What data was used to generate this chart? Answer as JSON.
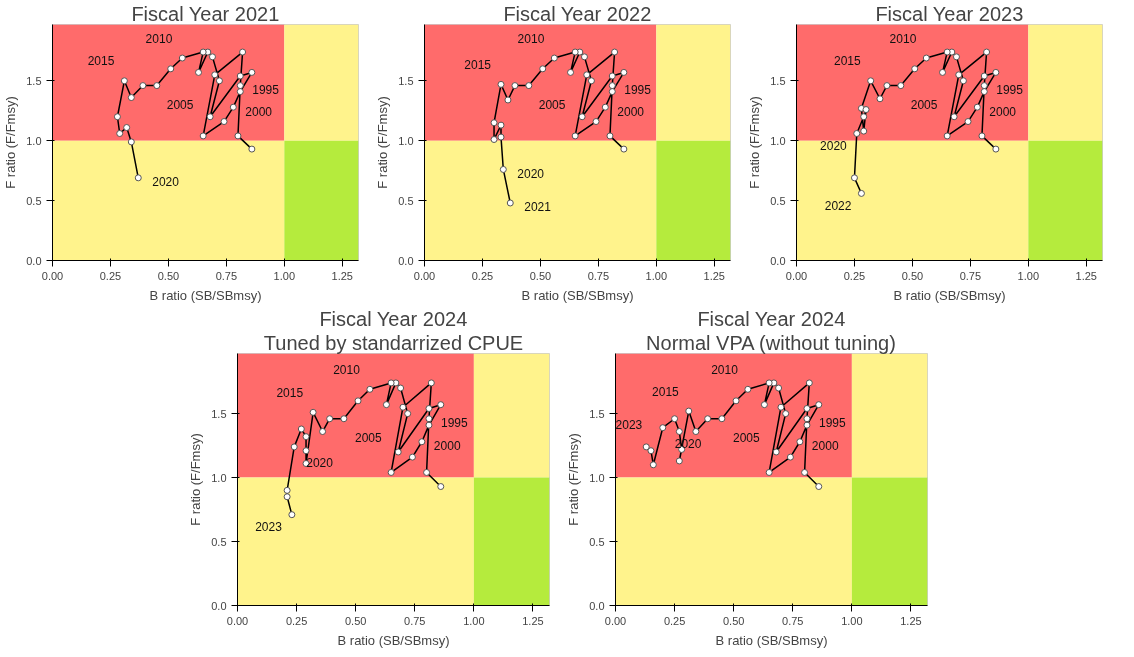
{
  "chart_data": [
    {
      "type": "line",
      "title": "Fiscal Year 2021",
      "xlabel": "B ratio (SB/SBmsy)",
      "ylabel": "F ratio (F/Fmsy)",
      "xlim": [
        0,
        1.32
      ],
      "ylim": [
        0,
        1.97
      ],
      "xticks": [
        {
          "value": 0,
          "label": "0.00"
        },
        {
          "value": 0.25,
          "label": "0.25"
        },
        {
          "value": 0.5,
          "label": "0.50"
        },
        {
          "value": 0.75,
          "label": "0.75"
        },
        {
          "value": 1,
          "label": "1.00"
        },
        {
          "value": 1.25,
          "label": "1.25"
        }
      ],
      "yticks": [
        {
          "value": 0,
          "label": "0.0"
        },
        {
          "value": 0.5,
          "label": "0.5"
        },
        {
          "value": 1,
          "label": "1.0"
        },
        {
          "value": 1.5,
          "label": "1.5"
        }
      ],
      "bands": [
        {
          "axis": "y",
          "from": 1,
          "to": 1.97,
          "color": "#ff6b6b"
        },
        {
          "axis": "y",
          "from": 0,
          "to": 1,
          "color": "#fff38c"
        },
        {
          "axis": "x",
          "from": 1,
          "to": 1.32,
          "color": "#fff38c"
        },
        {
          "axis": "x",
          "from": 1,
          "to": 1.32,
          "color": "#b5eb3d"
        }
      ],
      "marker": "circle",
      "grid": false,
      "series": [
        {
          "color": "#000000",
          "x": [
            0.86,
            0.8,
            0.81,
            0.82,
            0.7,
            0.65,
            0.74,
            0.78,
            0.81,
            0.86,
            0.81,
            0.68,
            0.72,
            0.69,
            0.67,
            0.63,
            0.65,
            0.56,
            0.51,
            0.45,
            0.39,
            0.34,
            0.31,
            0.28,
            0.29,
            0.32,
            0.34,
            0.37
          ],
          "values": [
            0.93,
            1.04,
            1.46,
            1.74,
            1.55,
            1.04,
            1.16,
            1.28,
            1.41,
            1.57,
            1.54,
            1.2,
            1.5,
            1.7,
            1.74,
            1.57,
            1.74,
            1.69,
            1.6,
            1.46,
            1.46,
            1.36,
            1.5,
            1.2,
            1.06,
            1.11,
            0.99,
            0.69
          ]
        }
      ],
      "annotations": [
        {
          "text": "1995",
          "x": 0.81,
          "y": 1.46
        },
        {
          "text": "2000",
          "x": 0.78,
          "y": 1.28
        },
        {
          "text": "2005",
          "x": 0.72,
          "y": 1.5
        },
        {
          "text": "2010",
          "x": 0.56,
          "y": 1.69
        },
        {
          "text": "2015",
          "x": 0.31,
          "y": 1.5
        },
        {
          "text": "2020",
          "x": 0.37,
          "y": 0.69
        }
      ]
    },
    {
      "type": "line",
      "title": "Fiscal Year 2022",
      "xlabel": "B ratio (SB/SBmsy)",
      "ylabel": "F ratio (F/Fmsy)",
      "xlim": [
        0,
        1.32
      ],
      "ylim": [
        0,
        1.97
      ],
      "xticks": [
        {
          "value": 0,
          "label": "0.00"
        },
        {
          "value": 0.25,
          "label": "0.25"
        },
        {
          "value": 0.5,
          "label": "0.50"
        },
        {
          "value": 0.75,
          "label": "0.75"
        },
        {
          "value": 1,
          "label": "1.00"
        },
        {
          "value": 1.25,
          "label": "1.25"
        }
      ],
      "yticks": [
        {
          "value": 0,
          "label": "0.0"
        },
        {
          "value": 0.5,
          "label": "0.5"
        },
        {
          "value": 1,
          "label": "1.0"
        },
        {
          "value": 1.5,
          "label": "1.5"
        }
      ],
      "bands": [
        {
          "axis": "y",
          "from": 1,
          "to": 1.97,
          "color": "#ff6b6b"
        },
        {
          "axis": "y",
          "from": 0,
          "to": 1,
          "color": "#fff38c"
        },
        {
          "axis": "x",
          "from": 1,
          "to": 1.32,
          "color": "#fff38c"
        },
        {
          "axis": "x",
          "from": 1,
          "to": 1.32,
          "color": "#b5eb3d"
        }
      ],
      "marker": "circle",
      "grid": false,
      "series": [
        {
          "color": "#000000",
          "x": [
            0.86,
            0.8,
            0.81,
            0.82,
            0.7,
            0.65,
            0.74,
            0.78,
            0.81,
            0.86,
            0.81,
            0.68,
            0.72,
            0.69,
            0.67,
            0.63,
            0.65,
            0.56,
            0.51,
            0.45,
            0.39,
            0.36,
            0.33,
            0.3,
            0.3,
            0.33,
            0.33,
            0.34,
            0.37
          ],
          "values": [
            0.93,
            1.04,
            1.46,
            1.74,
            1.55,
            1.04,
            1.16,
            1.28,
            1.41,
            1.57,
            1.54,
            1.2,
            1.5,
            1.7,
            1.74,
            1.57,
            1.74,
            1.69,
            1.6,
            1.46,
            1.46,
            1.34,
            1.47,
            1.15,
            1.01,
            1.13,
            1.03,
            0.76,
            0.48
          ]
        }
      ],
      "annotations": [
        {
          "text": "1995",
          "x": 0.81,
          "y": 1.46
        },
        {
          "text": "2000",
          "x": 0.78,
          "y": 1.28
        },
        {
          "text": "2005",
          "x": 0.72,
          "y": 1.5
        },
        {
          "text": "2010",
          "x": 0.56,
          "y": 1.69
        },
        {
          "text": "2015",
          "x": 0.33,
          "y": 1.47
        },
        {
          "text": "2020",
          "x": 0.34,
          "y": 0.76
        },
        {
          "text": "2021",
          "x": 0.37,
          "y": 0.48
        }
      ]
    },
    {
      "type": "line",
      "title": "Fiscal Year 2023",
      "xlabel": "B ratio (SB/SBmsy)",
      "ylabel": "F ratio (F/Fmsy)",
      "xlim": [
        0,
        1.32
      ],
      "ylim": [
        0,
        1.97
      ],
      "xticks": [
        {
          "value": 0,
          "label": "0.00"
        },
        {
          "value": 0.25,
          "label": "0.25"
        },
        {
          "value": 0.5,
          "label": "0.50"
        },
        {
          "value": 0.75,
          "label": "0.75"
        },
        {
          "value": 1,
          "label": "1.00"
        },
        {
          "value": 1.25,
          "label": "1.25"
        }
      ],
      "yticks": [
        {
          "value": 0,
          "label": "0.0"
        },
        {
          "value": 0.5,
          "label": "0.5"
        },
        {
          "value": 1,
          "label": "1.0"
        },
        {
          "value": 1.5,
          "label": "1.5"
        }
      ],
      "bands": [
        {
          "axis": "y",
          "from": 1,
          "to": 1.97,
          "color": "#ff6b6b"
        },
        {
          "axis": "y",
          "from": 0,
          "to": 1,
          "color": "#fff38c"
        },
        {
          "axis": "x",
          "from": 1,
          "to": 1.32,
          "color": "#fff38c"
        },
        {
          "axis": "x",
          "from": 1,
          "to": 1.32,
          "color": "#b5eb3d"
        }
      ],
      "marker": "circle",
      "grid": false,
      "series": [
        {
          "color": "#000000",
          "x": [
            0.86,
            0.8,
            0.81,
            0.82,
            0.7,
            0.65,
            0.74,
            0.78,
            0.81,
            0.86,
            0.81,
            0.68,
            0.72,
            0.69,
            0.67,
            0.63,
            0.65,
            0.56,
            0.51,
            0.45,
            0.39,
            0.36,
            0.32,
            0.28,
            0.29,
            0.3,
            0.29,
            0.26,
            0.25,
            0.28
          ],
          "values": [
            0.93,
            1.04,
            1.46,
            1.74,
            1.55,
            1.04,
            1.16,
            1.28,
            1.41,
            1.57,
            1.54,
            1.2,
            1.5,
            1.7,
            1.74,
            1.57,
            1.74,
            1.69,
            1.6,
            1.46,
            1.46,
            1.35,
            1.5,
            1.27,
            1.08,
            1.26,
            1.2,
            1.06,
            0.69,
            0.56
          ]
        }
      ],
      "annotations": [
        {
          "text": "1995",
          "x": 0.81,
          "y": 1.46
        },
        {
          "text": "2000",
          "x": 0.78,
          "y": 1.28
        },
        {
          "text": "2005",
          "x": 0.72,
          "y": 1.5
        },
        {
          "text": "2010",
          "x": 0.56,
          "y": 1.69
        },
        {
          "text": "2015",
          "x": 0.32,
          "y": 1.5
        },
        {
          "text": "2020",
          "x": 0.26,
          "y": 1.06
        },
        {
          "text": "2022",
          "x": 0.28,
          "y": 0.56
        }
      ]
    },
    {
      "type": "line",
      "title": "Fiscal Year 2024",
      "subtitle": "Tuned by standarrized CPUE",
      "xlabel": "B ratio (SB/SBmsy)",
      "ylabel": "F ratio (F/Fmsy)",
      "xlim": [
        0,
        1.32
      ],
      "ylim": [
        0,
        1.97
      ],
      "xticks": [
        {
          "value": 0,
          "label": "0.00"
        },
        {
          "value": 0.25,
          "label": "0.25"
        },
        {
          "value": 0.5,
          "label": "0.50"
        },
        {
          "value": 0.75,
          "label": "0.75"
        },
        {
          "value": 1,
          "label": "1.00"
        },
        {
          "value": 1.25,
          "label": "1.25"
        }
      ],
      "yticks": [
        {
          "value": 0,
          "label": "0.0"
        },
        {
          "value": 0.5,
          "label": "0.5"
        },
        {
          "value": 1,
          "label": "1.0"
        },
        {
          "value": 1.5,
          "label": "1.5"
        }
      ],
      "bands": [
        {
          "axis": "y",
          "from": 1,
          "to": 1.97,
          "color": "#ff6b6b"
        },
        {
          "axis": "y",
          "from": 0,
          "to": 1,
          "color": "#fff38c"
        },
        {
          "axis": "x",
          "from": 1,
          "to": 1.32,
          "color": "#fff38c"
        },
        {
          "axis": "x",
          "from": 1,
          "to": 1.32,
          "color": "#b5eb3d"
        }
      ],
      "marker": "circle",
      "grid": false,
      "series": [
        {
          "color": "#000000",
          "x": [
            0.86,
            0.8,
            0.81,
            0.82,
            0.7,
            0.65,
            0.74,
            0.78,
            0.81,
            0.86,
            0.81,
            0.68,
            0.72,
            0.69,
            0.67,
            0.63,
            0.65,
            0.56,
            0.51,
            0.45,
            0.39,
            0.36,
            0.32,
            0.29,
            0.29,
            0.29,
            0.27,
            0.24,
            0.21,
            0.21,
            0.23
          ],
          "values": [
            0.93,
            1.04,
            1.46,
            1.74,
            1.55,
            1.04,
            1.16,
            1.28,
            1.41,
            1.57,
            1.54,
            1.2,
            1.5,
            1.7,
            1.74,
            1.57,
            1.74,
            1.69,
            1.6,
            1.46,
            1.46,
            1.36,
            1.51,
            1.11,
            1.21,
            1.32,
            1.38,
            1.24,
            0.9,
            0.85,
            0.71
          ]
        }
      ],
      "annotations": [
        {
          "text": "1995",
          "x": 0.81,
          "y": 1.46
        },
        {
          "text": "2000",
          "x": 0.78,
          "y": 1.28
        },
        {
          "text": "2005",
          "x": 0.72,
          "y": 1.5
        },
        {
          "text": "2010",
          "x": 0.56,
          "y": 1.69
        },
        {
          "text": "2015",
          "x": 0.32,
          "y": 1.51
        },
        {
          "text": "2020",
          "x": 0.24,
          "y": 1.24
        },
        {
          "text": "2023",
          "x": 0.23,
          "y": 0.71
        }
      ]
    },
    {
      "type": "line",
      "title": "Fiscal Year 2024",
      "subtitle": "Normal VPA (without tuning)",
      "xlabel": "B ratio (SB/SBmsy)",
      "ylabel": "F ratio (F/Fmsy)",
      "xlim": [
        0,
        1.32
      ],
      "ylim": [
        0,
        1.97
      ],
      "xticks": [
        {
          "value": 0,
          "label": "0.00"
        },
        {
          "value": 0.25,
          "label": "0.25"
        },
        {
          "value": 0.5,
          "label": "0.50"
        },
        {
          "value": 0.75,
          "label": "0.75"
        },
        {
          "value": 1,
          "label": "1.00"
        },
        {
          "value": 1.25,
          "label": "1.25"
        }
      ],
      "yticks": [
        {
          "value": 0,
          "label": "0.0"
        },
        {
          "value": 0.5,
          "label": "0.5"
        },
        {
          "value": 1,
          "label": "1.0"
        },
        {
          "value": 1.5,
          "label": "1.5"
        }
      ],
      "bands": [
        {
          "axis": "y",
          "from": 1,
          "to": 1.97,
          "color": "#ff6b6b"
        },
        {
          "axis": "y",
          "from": 0,
          "to": 1,
          "color": "#fff38c"
        },
        {
          "axis": "x",
          "from": 1,
          "to": 1.32,
          "color": "#fff38c"
        },
        {
          "axis": "x",
          "from": 1,
          "to": 1.32,
          "color": "#b5eb3d"
        }
      ],
      "marker": "circle",
      "grid": false,
      "series": [
        {
          "color": "#000000",
          "x": [
            0.86,
            0.8,
            0.81,
            0.82,
            0.7,
            0.65,
            0.74,
            0.78,
            0.81,
            0.86,
            0.81,
            0.68,
            0.72,
            0.69,
            0.67,
            0.63,
            0.65,
            0.56,
            0.51,
            0.45,
            0.39,
            0.34,
            0.31,
            0.27,
            0.28,
            0.27,
            0.25,
            0.2,
            0.16,
            0.15,
            0.13
          ],
          "values": [
            0.93,
            1.04,
            1.46,
            1.74,
            1.55,
            1.04,
            1.16,
            1.28,
            1.41,
            1.57,
            1.54,
            1.2,
            1.5,
            1.7,
            1.74,
            1.57,
            1.74,
            1.69,
            1.6,
            1.46,
            1.46,
            1.36,
            1.52,
            1.13,
            1.22,
            1.36,
            1.46,
            1.39,
            1.1,
            1.21,
            1.24
          ]
        }
      ],
      "annotations": [
        {
          "text": "1995",
          "x": 0.81,
          "y": 1.46
        },
        {
          "text": "2000",
          "x": 0.78,
          "y": 1.28
        },
        {
          "text": "2005",
          "x": 0.72,
          "y": 1.5
        },
        {
          "text": "2010",
          "x": 0.56,
          "y": 1.69
        },
        {
          "text": "2015",
          "x": 0.31,
          "y": 1.52
        },
        {
          "text": "2020",
          "x": 0.2,
          "y": 1.39
        },
        {
          "text": "2023",
          "x": 0.13,
          "y": 1.24
        }
      ]
    }
  ]
}
